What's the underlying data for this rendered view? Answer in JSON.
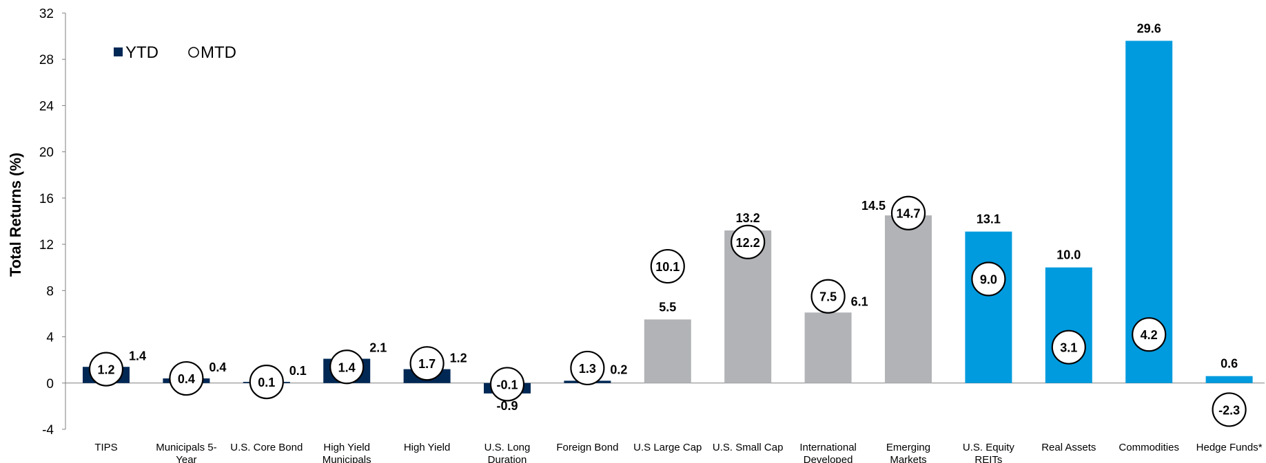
{
  "chart_data": {
    "type": "bar",
    "ylabel": "Total Returns (%)",
    "ylim": [
      -4,
      32
    ],
    "yticks": [
      -4,
      0,
      4,
      8,
      12,
      16,
      20,
      24,
      28,
      32
    ],
    "legend": {
      "placement": "top-left",
      "entries": [
        {
          "label": "YTD",
          "marker": "square"
        },
        {
          "label": "MTD",
          "marker": "circle"
        }
      ]
    },
    "categories": [
      [
        "TIPS"
      ],
      [
        "Municipals 5-",
        "Year"
      ],
      [
        "U.S. Core Bond"
      ],
      [
        "High Yield",
        "Municipals"
      ],
      [
        "High Yield"
      ],
      [
        "U.S. Long",
        "Duration"
      ],
      [
        "Foreign Bond"
      ],
      [
        "U.S Large Cap"
      ],
      [
        "U.S. Small Cap"
      ],
      [
        "International",
        "Developed"
      ],
      [
        "Emerging",
        "Markets"
      ],
      [
        "U.S. Equity",
        "REITs"
      ],
      [
        "Real Assets"
      ],
      [
        "Commodities"
      ],
      [
        "Hedge Funds*"
      ]
    ],
    "series": [
      {
        "name": "YTD",
        "values": [
          1.4,
          0.4,
          0.1,
          2.1,
          1.2,
          -0.9,
          0.2,
          5.5,
          13.2,
          6.1,
          14.5,
          13.1,
          10.0,
          29.6,
          0.6
        ],
        "labels": [
          "1.4",
          "0.4",
          "0.1",
          "2.1",
          "1.2",
          "-0.9",
          "0.2",
          "5.5",
          "13.2",
          "6.1",
          "14.5",
          "13.1",
          "10.0",
          "29.6",
          "0.6"
        ]
      },
      {
        "name": "MTD",
        "values": [
          1.2,
          0.4,
          0.1,
          1.4,
          1.7,
          -0.1,
          1.3,
          10.1,
          12.2,
          7.5,
          14.7,
          9.0,
          3.1,
          4.2,
          -2.3
        ],
        "labels": [
          "1.2",
          "0.4",
          "0.1",
          "1.4",
          "1.7",
          "-0.1",
          "1.3",
          "10.1",
          "12.2",
          "7.5",
          "14.7",
          "9.0",
          "3.1",
          "4.2",
          "-2.3"
        ]
      }
    ],
    "bar_colors": [
      "#002855",
      "#002855",
      "#002855",
      "#002855",
      "#002855",
      "#002855",
      "#002855",
      "#b1b3b6",
      "#b1b3b6",
      "#b1b3b6",
      "#b1b3b6",
      "#009bde",
      "#009bde",
      "#009bde",
      "#009bde"
    ],
    "grid": false
  }
}
